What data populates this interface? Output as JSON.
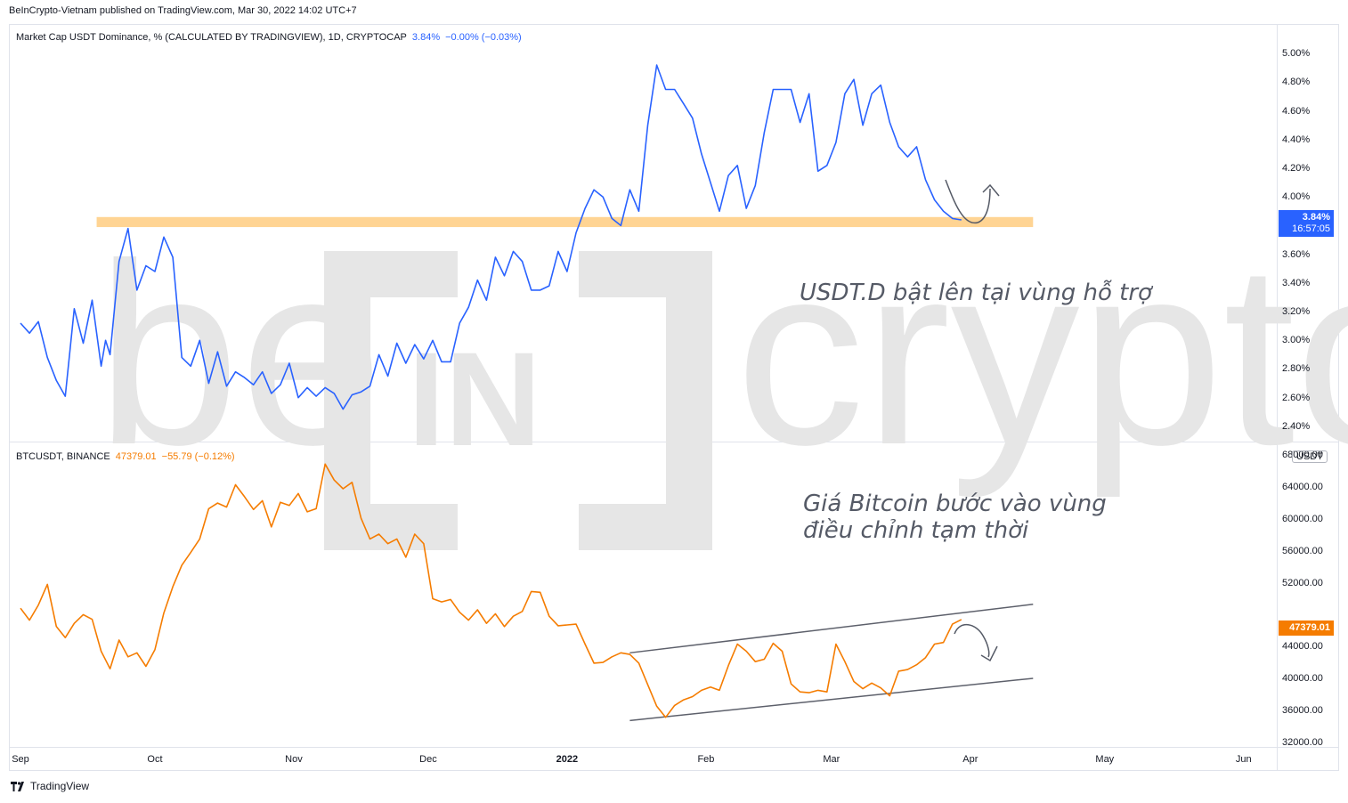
{
  "header": {
    "published": "BeInCrypto-Vietnam published on TradingView.com, Mar 30, 2022 14:02 UTC+7"
  },
  "footer": {
    "brand": "TradingView",
    "logo_icon": "tradingview-logo-icon"
  },
  "watermark": {
    "text": "crypto",
    "prefix": "be",
    "box_text": "IN"
  },
  "colors": {
    "usdt": "#2962ff",
    "btc": "#f57c00",
    "zone": "#ffcc80",
    "channel": "#5d606b",
    "arrow": "#555a66"
  },
  "chart_data": [
    {
      "type": "line",
      "pane": "top",
      "title": "Market Cap USDT Dominance, % (CALCULATED BY TRADINGVIEW), 1D, CRYPTOCAP",
      "legend_value": "3.84%",
      "legend_change": "−0.00% (−0.03%)",
      "last_value_tag": "3.84%",
      "countdown": "16:57:05",
      "ylim": [
        2.3,
        5.2
      ],
      "y_ticks": [
        "5.00%",
        "4.80%",
        "4.60%",
        "4.40%",
        "4.20%",
        "4.00%",
        "3.60%",
        "3.40%",
        "3.20%",
        "3.00%",
        "2.80%",
        "2.60%",
        "2.40%"
      ],
      "y_tick_values": [
        5.0,
        4.8,
        4.6,
        4.4,
        4.2,
        4.0,
        3.6,
        3.4,
        3.2,
        3.0,
        2.8,
        2.6,
        2.4
      ],
      "support_zone": {
        "from": "2021-09-18",
        "to": "2022-04-15",
        "y_low": 3.79,
        "y_high": 3.86
      },
      "annotation": "USDT.D bật lên tại vùng hỗ trợ",
      "series": [
        {
          "x": [
            "2021-09-01",
            "2021-09-03",
            "2021-09-05",
            "2021-09-07",
            "2021-09-09",
            "2021-09-11",
            "2021-09-13",
            "2021-09-15",
            "2021-09-17",
            "2021-09-19",
            "2021-09-20",
            "2021-09-21",
            "2021-09-23",
            "2021-09-25",
            "2021-09-27",
            "2021-09-29",
            "2021-10-01",
            "2021-10-03",
            "2021-10-05",
            "2021-10-07",
            "2021-10-09",
            "2021-10-11",
            "2021-10-13",
            "2021-10-15",
            "2021-10-17",
            "2021-10-19",
            "2021-10-21",
            "2021-10-23",
            "2021-10-25",
            "2021-10-27",
            "2021-10-29",
            "2021-10-31",
            "2021-11-02",
            "2021-11-04",
            "2021-11-06",
            "2021-11-08",
            "2021-11-10",
            "2021-11-12",
            "2021-11-14",
            "2021-11-16",
            "2021-11-18",
            "2021-11-20",
            "2021-11-22",
            "2021-11-24",
            "2021-11-26",
            "2021-11-28",
            "2021-11-30",
            "2021-12-02",
            "2021-12-04",
            "2021-12-06",
            "2021-12-08",
            "2021-12-10",
            "2021-12-12",
            "2021-12-14",
            "2021-12-16",
            "2021-12-18",
            "2021-12-20",
            "2021-12-22",
            "2021-12-24",
            "2021-12-26",
            "2021-12-28",
            "2021-12-30",
            "2022-01-01",
            "2022-01-03",
            "2022-01-05",
            "2022-01-07",
            "2022-01-09",
            "2022-01-11",
            "2022-01-13",
            "2022-01-15",
            "2022-01-17",
            "2022-01-19",
            "2022-01-21",
            "2022-01-23",
            "2022-01-25",
            "2022-01-27",
            "2022-01-29",
            "2022-01-31",
            "2022-02-02",
            "2022-02-04",
            "2022-02-06",
            "2022-02-08",
            "2022-02-10",
            "2022-02-12",
            "2022-02-14",
            "2022-02-16",
            "2022-02-18",
            "2022-02-20",
            "2022-02-22",
            "2022-02-24",
            "2022-02-26",
            "2022-02-28",
            "2022-03-02",
            "2022-03-04",
            "2022-03-06",
            "2022-03-08",
            "2022-03-10",
            "2022-03-12",
            "2022-03-14",
            "2022-03-16",
            "2022-03-18",
            "2022-03-20",
            "2022-03-22",
            "2022-03-24",
            "2022-03-26",
            "2022-03-28",
            "2022-03-30"
          ],
          "values": [
            3.12,
            3.05,
            3.13,
            2.88,
            2.72,
            2.61,
            3.22,
            2.98,
            3.28,
            2.82,
            3.0,
            2.9,
            3.55,
            3.78,
            3.35,
            3.52,
            3.48,
            3.72,
            3.58,
            2.88,
            2.82,
            3.0,
            2.7,
            2.92,
            2.68,
            2.78,
            2.74,
            2.69,
            2.78,
            2.63,
            2.69,
            2.84,
            2.6,
            2.67,
            2.61,
            2.67,
            2.63,
            2.52,
            2.62,
            2.64,
            2.68,
            2.9,
            2.75,
            2.98,
            2.84,
            2.97,
            2.87,
            3.0,
            2.85,
            2.85,
            3.12,
            3.23,
            3.42,
            3.28,
            3.58,
            3.45,
            3.62,
            3.55,
            3.35,
            3.35,
            3.38,
            3.62,
            3.48,
            3.75,
            3.92,
            4.05,
            4.0,
            3.85,
            3.8,
            4.05,
            3.9,
            4.5,
            4.92,
            4.75,
            4.75,
            4.65,
            4.55,
            4.3,
            4.1,
            3.9,
            4.15,
            4.22,
            3.92,
            4.08,
            4.45,
            4.75,
            4.75,
            4.75,
            4.52,
            4.72,
            4.18,
            4.22,
            4.38,
            4.72,
            4.82,
            4.5,
            4.72,
            4.78,
            4.52,
            4.35,
            4.28,
            4.35,
            4.12,
            3.98,
            3.9,
            3.85,
            3.84
          ]
        }
      ]
    },
    {
      "type": "line",
      "pane": "bottom",
      "title": "BTCUSDT, BINANCE",
      "legend_value": "47379.01",
      "legend_change": "−55.79 (−0.12%)",
      "last_value_tag": "47379.01",
      "unit": "USDT",
      "ylim": [
        31500,
        69500
      ],
      "y_ticks": [
        "68000.00",
        "64000.00",
        "60000.00",
        "56000.00",
        "52000.00",
        "44000.00",
        "40000.00",
        "36000.00",
        "32000.00"
      ],
      "y_tick_values": [
        68000,
        64000,
        60000,
        56000,
        52000,
        44000,
        40000,
        36000,
        32000
      ],
      "channel": {
        "upper": [
          [
            "2022-01-15",
            43200
          ],
          [
            "2022-04-15",
            49300
          ]
        ],
        "lower": [
          [
            "2022-01-15",
            34700
          ],
          [
            "2022-04-15",
            40000
          ]
        ]
      },
      "annotation": "Giá Bitcoin bước vào vùng điều chỉnh tạm thời",
      "series": [
        {
          "x": [
            "2021-09-01",
            "2021-09-03",
            "2021-09-05",
            "2021-09-07",
            "2021-09-09",
            "2021-09-11",
            "2021-09-13",
            "2021-09-15",
            "2021-09-17",
            "2021-09-19",
            "2021-09-21",
            "2021-09-23",
            "2021-09-25",
            "2021-09-27",
            "2021-09-29",
            "2021-10-01",
            "2021-10-03",
            "2021-10-05",
            "2021-10-07",
            "2021-10-09",
            "2021-10-11",
            "2021-10-13",
            "2021-10-15",
            "2021-10-17",
            "2021-10-19",
            "2021-10-21",
            "2021-10-23",
            "2021-10-25",
            "2021-10-27",
            "2021-10-29",
            "2021-10-31",
            "2021-11-02",
            "2021-11-04",
            "2021-11-06",
            "2021-11-08",
            "2021-11-10",
            "2021-11-12",
            "2021-11-14",
            "2021-11-16",
            "2021-11-18",
            "2021-11-20",
            "2021-11-22",
            "2021-11-24",
            "2021-11-26",
            "2021-11-28",
            "2021-11-30",
            "2021-12-02",
            "2021-12-04",
            "2021-12-06",
            "2021-12-08",
            "2021-12-10",
            "2021-12-12",
            "2021-12-14",
            "2021-12-16",
            "2021-12-18",
            "2021-12-20",
            "2021-12-22",
            "2021-12-24",
            "2021-12-26",
            "2021-12-28",
            "2021-12-30",
            "2022-01-01",
            "2022-01-03",
            "2022-01-05",
            "2022-01-07",
            "2022-01-09",
            "2022-01-11",
            "2022-01-13",
            "2022-01-15",
            "2022-01-17",
            "2022-01-19",
            "2022-01-21",
            "2022-01-23",
            "2022-01-25",
            "2022-01-27",
            "2022-01-29",
            "2022-01-31",
            "2022-02-02",
            "2022-02-04",
            "2022-02-06",
            "2022-02-08",
            "2022-02-10",
            "2022-02-12",
            "2022-02-14",
            "2022-02-16",
            "2022-02-18",
            "2022-02-20",
            "2022-02-22",
            "2022-02-24",
            "2022-02-26",
            "2022-02-28",
            "2022-03-02",
            "2022-03-04",
            "2022-03-06",
            "2022-03-08",
            "2022-03-10",
            "2022-03-12",
            "2022-03-14",
            "2022-03-16",
            "2022-03-18",
            "2022-03-20",
            "2022-03-22",
            "2022-03-24",
            "2022-03-26",
            "2022-03-28",
            "2022-03-30"
          ],
          "values": [
            48800,
            47300,
            49200,
            51800,
            46500,
            45100,
            46900,
            48000,
            47400,
            43400,
            41200,
            44800,
            42700,
            43200,
            41500,
            43600,
            48200,
            51500,
            54200,
            55800,
            57500,
            61300,
            62000,
            61500,
            64300,
            62800,
            61200,
            62300,
            59000,
            62100,
            61700,
            63200,
            60900,
            61300,
            66900,
            64900,
            63800,
            64600,
            60100,
            57500,
            58100,
            56900,
            57500,
            55200,
            58100,
            56900,
            50000,
            49600,
            49900,
            48300,
            47300,
            48600,
            46900,
            48100,
            46500,
            47800,
            48400,
            50900,
            50800,
            47800,
            46600,
            46700,
            46800,
            44300,
            41900,
            42000,
            42700,
            43200,
            43000,
            41900,
            39200,
            36500,
            35100,
            36600,
            37300,
            37700,
            38500,
            38900,
            38500,
            41600,
            44300,
            43400,
            42100,
            42400,
            44400,
            43400,
            39300,
            38300,
            38200,
            38500,
            38300,
            44300,
            42100,
            39600,
            38700,
            39400,
            38800,
            37800,
            40900,
            41100,
            41700,
            42600,
            44300,
            44500,
            46800,
            47379
          ]
        }
      ]
    }
  ],
  "x_axis": {
    "labels": [
      "Sep",
      "Oct",
      "Nov",
      "Dec",
      "2022",
      "Feb",
      "Mar",
      "Apr",
      "May",
      "Jun"
    ],
    "dates": [
      "2021-09-01",
      "2021-10-01",
      "2021-11-01",
      "2021-12-01",
      "2022-01-01",
      "2022-02-01",
      "2022-03-01",
      "2022-04-01",
      "2022-05-01",
      "2022-06-01"
    ]
  }
}
